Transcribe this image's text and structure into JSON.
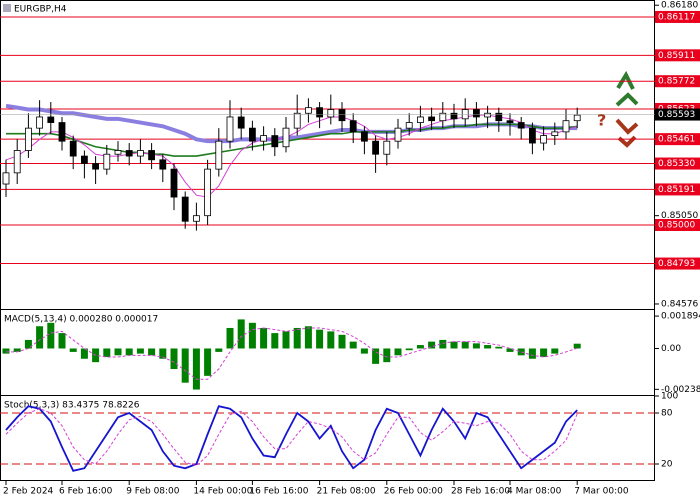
{
  "chart_data": [
    {
      "type": "candlestick",
      "title": "EURGBP,H4",
      "ylim": [
        0.84549,
        0.86208
      ],
      "yticks": [
        {
          "value": 0.8618,
          "label": "0.86180"
        },
        {
          "value": 0.8505,
          "label": "0.85050"
        },
        0.84576
      ],
      "levels": [
        0.86117,
        0.85911,
        0.85772,
        0.85623,
        0.85461,
        {
          "value": 0.8533,
          "label": "0.85330"
        },
        0.85191,
        {
          "value": 0.85,
          "label": "0.85000"
        },
        0.84793
      ],
      "level_color": "#e8001c",
      "last_price": 0.85593,
      "open": [
        0.8522,
        0.8528,
        0.854,
        0.8552,
        0.8558,
        0.8555,
        0.8545,
        0.8537,
        0.8533,
        0.853,
        0.8538,
        0.854,
        0.8537,
        0.854,
        0.8535,
        0.853,
        0.8515,
        0.8502,
        0.8505,
        0.853,
        0.8545,
        0.8558,
        0.8552,
        0.8545,
        0.8548,
        0.8542,
        0.8552,
        0.856,
        0.8563,
        0.8558,
        0.8562,
        0.8556,
        0.855,
        0.8545,
        0.8538,
        0.8545,
        0.8552,
        0.8555,
        0.8558,
        0.8556,
        0.856,
        0.8557,
        0.8562,
        0.8558,
        0.856,
        0.8556,
        0.8555,
        0.8552,
        0.8544,
        0.8548,
        0.855,
        0.8556
      ],
      "high": [
        0.8535,
        0.8546,
        0.856,
        0.8567,
        0.8566,
        0.8558,
        0.8548,
        0.854,
        0.8537,
        0.8543,
        0.8545,
        0.8544,
        0.8546,
        0.8544,
        0.8538,
        0.8533,
        0.8518,
        0.8512,
        0.8535,
        0.8552,
        0.8567,
        0.8563,
        0.8556,
        0.8553,
        0.8552,
        0.8558,
        0.857,
        0.8568,
        0.8566,
        0.857,
        0.8566,
        0.856,
        0.8553,
        0.8548,
        0.855,
        0.8557,
        0.856,
        0.8564,
        0.8563,
        0.8566,
        0.8565,
        0.8568,
        0.8566,
        0.8564,
        0.8563,
        0.856,
        0.8558,
        0.8555,
        0.8553,
        0.8555,
        0.8562,
        0.8563
      ],
      "low": [
        0.8515,
        0.8522,
        0.8536,
        0.8548,
        0.8549,
        0.854,
        0.853,
        0.8525,
        0.8522,
        0.8527,
        0.8534,
        0.8532,
        0.8533,
        0.853,
        0.8523,
        0.8508,
        0.8498,
        0.8497,
        0.85,
        0.8526,
        0.8541,
        0.8546,
        0.854,
        0.854,
        0.8537,
        0.8539,
        0.8548,
        0.8555,
        0.8552,
        0.8554,
        0.855,
        0.8544,
        0.8538,
        0.8528,
        0.8532,
        0.8541,
        0.8548,
        0.855,
        0.8551,
        0.8552,
        0.8552,
        0.8553,
        0.8553,
        0.8552,
        0.855,
        0.8548,
        0.8546,
        0.8538,
        0.854,
        0.8543,
        0.8546,
        0.8552
      ],
      "close": [
        0.8528,
        0.854,
        0.8552,
        0.8558,
        0.8555,
        0.8545,
        0.8537,
        0.8533,
        0.853,
        0.8538,
        0.854,
        0.8537,
        0.854,
        0.8535,
        0.853,
        0.8515,
        0.8502,
        0.8505,
        0.853,
        0.8545,
        0.8558,
        0.8552,
        0.8545,
        0.8548,
        0.8542,
        0.8552,
        0.856,
        0.8563,
        0.8558,
        0.8562,
        0.8556,
        0.855,
        0.8545,
        0.8538,
        0.8545,
        0.8552,
        0.8555,
        0.8558,
        0.8556,
        0.856,
        0.8557,
        0.8562,
        0.8558,
        0.856,
        0.8556,
        0.8555,
        0.8552,
        0.8544,
        0.8548,
        0.855,
        0.8556,
        0.8559
      ],
      "series": [
        {
          "color": "#8a7fe0",
          "width": 4,
          "values": [
            0.8564,
            0.8563,
            0.8562,
            0.8562,
            0.8561,
            0.856,
            0.856,
            0.8559,
            0.8558,
            0.8557,
            0.8557,
            0.8556,
            0.8555,
            0.8554,
            0.8553,
            0.8551,
            0.8549,
            0.8546,
            0.8545,
            0.8545,
            0.8545,
            0.8546,
            0.8546,
            0.8546,
            0.8546,
            0.8547,
            0.8547,
            0.8548,
            0.8549,
            0.855,
            0.8551,
            0.8551,
            0.855,
            0.855,
            0.855,
            0.855,
            0.8551,
            0.8551,
            0.8552,
            0.8552,
            0.8553,
            0.8553,
            0.8553,
            0.8554,
            0.8554,
            0.8554,
            0.8553,
            0.8553,
            0.8552,
            0.8552,
            0.8552,
            0.8552
          ]
        },
        {
          "color": "#1e7b1e",
          "width": 1.6,
          "values": [
            0.8549,
            0.8549,
            0.8549,
            0.8549,
            0.8549,
            0.8548,
            0.8546,
            0.8544,
            0.8542,
            0.8541,
            0.854,
            0.8539,
            0.8539,
            0.8538,
            0.8538,
            0.8537,
            0.8537,
            0.8537,
            0.8538,
            0.8539,
            0.854,
            0.8541,
            0.8542,
            0.8543,
            0.8544,
            0.8545,
            0.8546,
            0.8547,
            0.8548,
            0.8549,
            0.8549,
            0.855,
            0.855,
            0.855,
            0.855,
            0.855,
            0.8551,
            0.8551,
            0.8552,
            0.8552,
            0.8553,
            0.8553,
            0.8554,
            0.8554,
            0.8554,
            0.8554,
            0.8554,
            0.8553,
            0.8552,
            0.8552,
            0.8552,
            0.8553
          ]
        },
        {
          "color": "#d63fd6",
          "width": 1,
          "values": [
            0.8535,
            0.8537,
            0.8541,
            0.8546,
            0.855,
            0.855,
            0.8547,
            0.8543,
            0.8538,
            0.8537,
            0.8537,
            0.8538,
            0.8539,
            0.8538,
            0.8537,
            0.8532,
            0.8523,
            0.8516,
            0.8515,
            0.8521,
            0.8532,
            0.854,
            0.8544,
            0.8546,
            0.8546,
            0.8547,
            0.855,
            0.8554,
            0.8556,
            0.8558,
            0.8558,
            0.8556,
            0.8553,
            0.8548,
            0.8546,
            0.8547,
            0.8549,
            0.8552,
            0.8554,
            0.8556,
            0.8557,
            0.8558,
            0.8559,
            0.8559,
            0.8558,
            0.8557,
            0.8555,
            0.8551,
            0.8549,
            0.8549,
            0.8551,
            0.8553
          ]
        }
      ]
    },
    {
      "type": "macd",
      "title": "MACD(5,13,4) 0.000280 0.000017",
      "ylim": [
        -0.00272,
        0.00225
      ],
      "yticks": [
        0.001894,
        {
          "value": 0,
          "label": "0.00"
        },
        -0.002388
      ],
      "series": [
        {
          "color": "#008000",
          "values": [
            -0.0003,
            -0.0002,
            0.0005,
            0.0013,
            0.0015,
            0.0009,
            -0.0002,
            -0.0006,
            -0.0008,
            -0.0005,
            -0.0004,
            -0.0004,
            -0.0003,
            -0.0004,
            -0.0006,
            -0.0012,
            -0.002,
            -0.0024,
            -0.0016,
            -0.0002,
            0.0012,
            0.0017,
            0.0015,
            0.0012,
            0.0009,
            0.001,
            0.0012,
            0.0013,
            0.0011,
            0.001,
            0.0008,
            0.0004,
            -0.0003,
            -0.0009,
            -0.0008,
            -0.0004,
            -0.0001,
            0.0002,
            0.0004,
            0.0005,
            0.0004,
            0.0004,
            0.0003,
            0.0002,
            0.0001,
            -0.0002,
            -0.0004,
            -0.0006,
            -0.0005,
            -0.0003,
            0,
            0.00028
          ]
        },
        {
          "color": "#d63fd6",
          "values": [
            -0.0002,
            -0.0002,
            0,
            0.0005,
            0.0009,
            0.001,
            0.0005,
            0,
            -0.0004,
            -0.0005,
            -0.0005,
            -0.0004,
            -0.0004,
            -0.0004,
            -0.0005,
            -0.0008,
            -0.0013,
            -0.0018,
            -0.0018,
            -0.0012,
            -0.0002,
            0.0007,
            0.0011,
            0.0012,
            0.0011,
            0.001,
            0.0011,
            0.0012,
            0.0012,
            0.0011,
            0.001,
            0.0007,
            0.0003,
            -0.0002,
            -0.0005,
            -0.0005,
            -0.0003,
            -0.0001,
            0.0001,
            0.0003,
            0.0004,
            0.0004,
            0.0004,
            0.0003,
            0.0002,
            0,
            -0.0002,
            -0.0004,
            -0.0005,
            -0.0004,
            -0.0002,
            1.7e-05
          ]
        }
      ]
    },
    {
      "type": "line",
      "title": "Stoch(5,3,3) 83.4375 78.8226",
      "ylim": [
        0,
        100
      ],
      "yticks": [
        100,
        80,
        20
      ],
      "levels": [
        80,
        20
      ],
      "level_color": "#d01010",
      "categories": [
        "2 Feb 2024",
        null,
        null,
        null,
        null,
        "6 Feb 16:00",
        null,
        null,
        null,
        null,
        null,
        "9 Feb 08:00",
        null,
        null,
        null,
        null,
        null,
        "14 Feb 00:00",
        null,
        null,
        null,
        null,
        "16 Feb 16:00",
        null,
        null,
        null,
        null,
        null,
        "21 Feb 08:00",
        null,
        null,
        null,
        null,
        null,
        "26 Feb 00:00",
        null,
        null,
        null,
        null,
        null,
        "28 Feb 16:00",
        null,
        null,
        null,
        null,
        "4 Mar 08:00",
        null,
        null,
        null,
        null,
        null,
        "7 Mar 00:00"
      ],
      "series": [
        {
          "color": "#1515d0",
          "width": 1.8,
          "values": [
            60,
            75,
            88,
            85,
            70,
            40,
            12,
            15,
            35,
            55,
            75,
            80,
            70,
            60,
            35,
            18,
            15,
            20,
            55,
            88,
            85,
            75,
            50,
            30,
            28,
            55,
            80,
            70,
            50,
            65,
            35,
            15,
            25,
            60,
            85,
            80,
            55,
            30,
            60,
            85,
            70,
            50,
            80,
            75,
            55,
            35,
            15,
            25,
            35,
            45,
            70,
            83.4375
          ]
        },
        {
          "color": "#d63fd6",
          "width": 1,
          "dash": true,
          "values": [
            55,
            68,
            80,
            85,
            80,
            65,
            40,
            25,
            20,
            35,
            55,
            72,
            76,
            70,
            55,
            38,
            22,
            18,
            30,
            55,
            78,
            82,
            70,
            52,
            38,
            38,
            55,
            70,
            67,
            62,
            52,
            35,
            25,
            33,
            55,
            75,
            75,
            57,
            48,
            58,
            70,
            68,
            65,
            70,
            68,
            55,
            35,
            25,
            25,
            35,
            48,
            78.8226
          ]
        }
      ]
    }
  ]
}
